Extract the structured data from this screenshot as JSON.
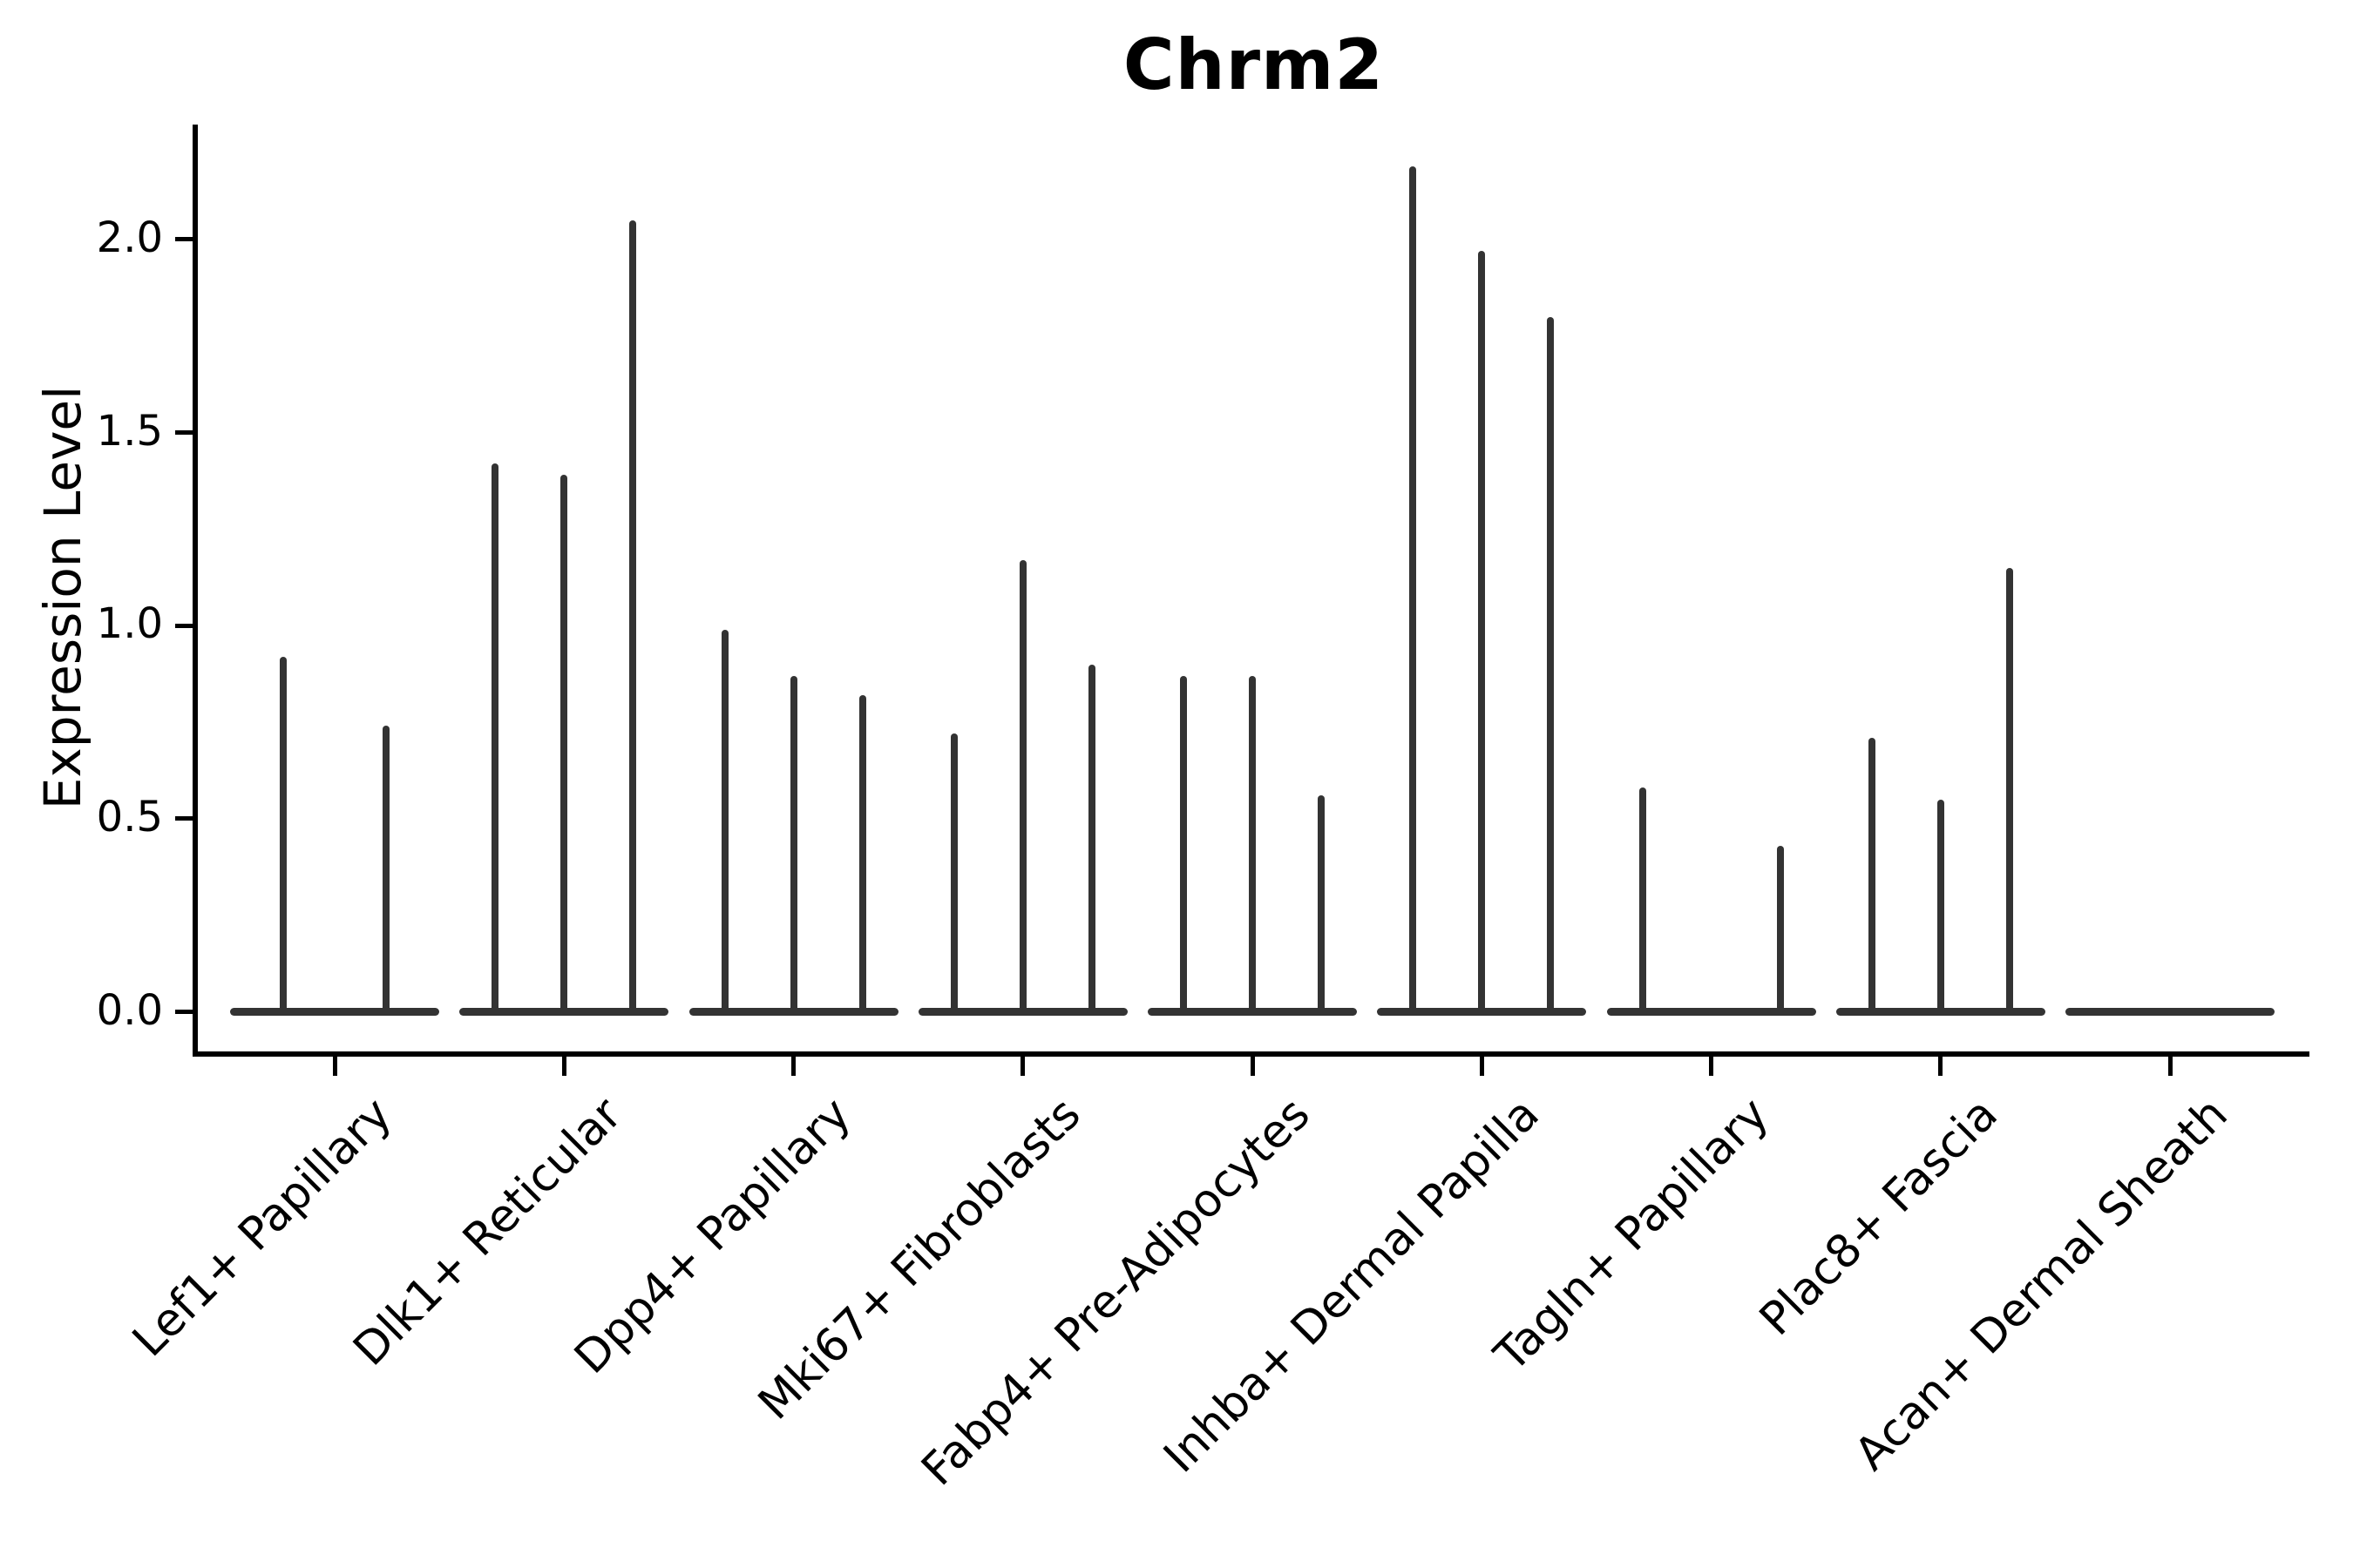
{
  "colors": {
    "ink": "#333333",
    "axis": "#000000",
    "background": "#ffffff"
  },
  "chart_data": {
    "type": "violin",
    "title": "Chrm2",
    "ylabel": "Expression Level",
    "xlabel": "",
    "yticks": [
      0.0,
      0.5,
      1.0,
      1.5,
      2.0
    ],
    "ytick_labels": [
      "0.0",
      "0.5",
      "1.0",
      "1.5",
      "2.0"
    ],
    "ylim": [
      -0.11,
      2.3
    ],
    "grid": false,
    "legend": "none",
    "categories": [
      "Lef1+ Papillary",
      "Dlk1+ Reticular",
      "Dpp4+ Papillary",
      "Mki67+ Fibroblasts",
      "Fabp4+ Pre-Adipocytes",
      "Inhba+ Dermal Papilla",
      "Tagln+ Papillary",
      "Plac8+ Fascia",
      "Acan+ Dermal Sheath"
    ],
    "groups": [
      {
        "label": "Lef1+ Papillary",
        "violin_max_values": [
          0.92,
          0.74
        ]
      },
      {
        "label": "Dlk1+ Reticular",
        "violin_max_values": [
          1.42,
          1.39,
          2.05
        ]
      },
      {
        "label": "Dpp4+ Papillary",
        "violin_max_values": [
          0.99,
          0.87,
          0.82
        ]
      },
      {
        "label": "Mki67+ Fibroblasts",
        "violin_max_values": [
          0.72,
          1.17,
          0.9
        ]
      },
      {
        "label": "Fabp4+ Pre-Adipocytes",
        "violin_max_values": [
          0.87,
          0.87,
          0.56
        ]
      },
      {
        "label": "Inhba+ Dermal Papilla",
        "violin_max_values": [
          2.19,
          1.97,
          1.8
        ]
      },
      {
        "label": "Tagln+ Papillary",
        "violin_max_values": [
          0.58,
          0.0,
          0.43
        ]
      },
      {
        "label": "Plac8+ Fascia",
        "violin_max_values": [
          0.71,
          0.55,
          1.15
        ]
      },
      {
        "label": "Acan+ Dermal Sheath",
        "violin_max_values": [
          0.0,
          0.0,
          0.0
        ]
      }
    ]
  }
}
